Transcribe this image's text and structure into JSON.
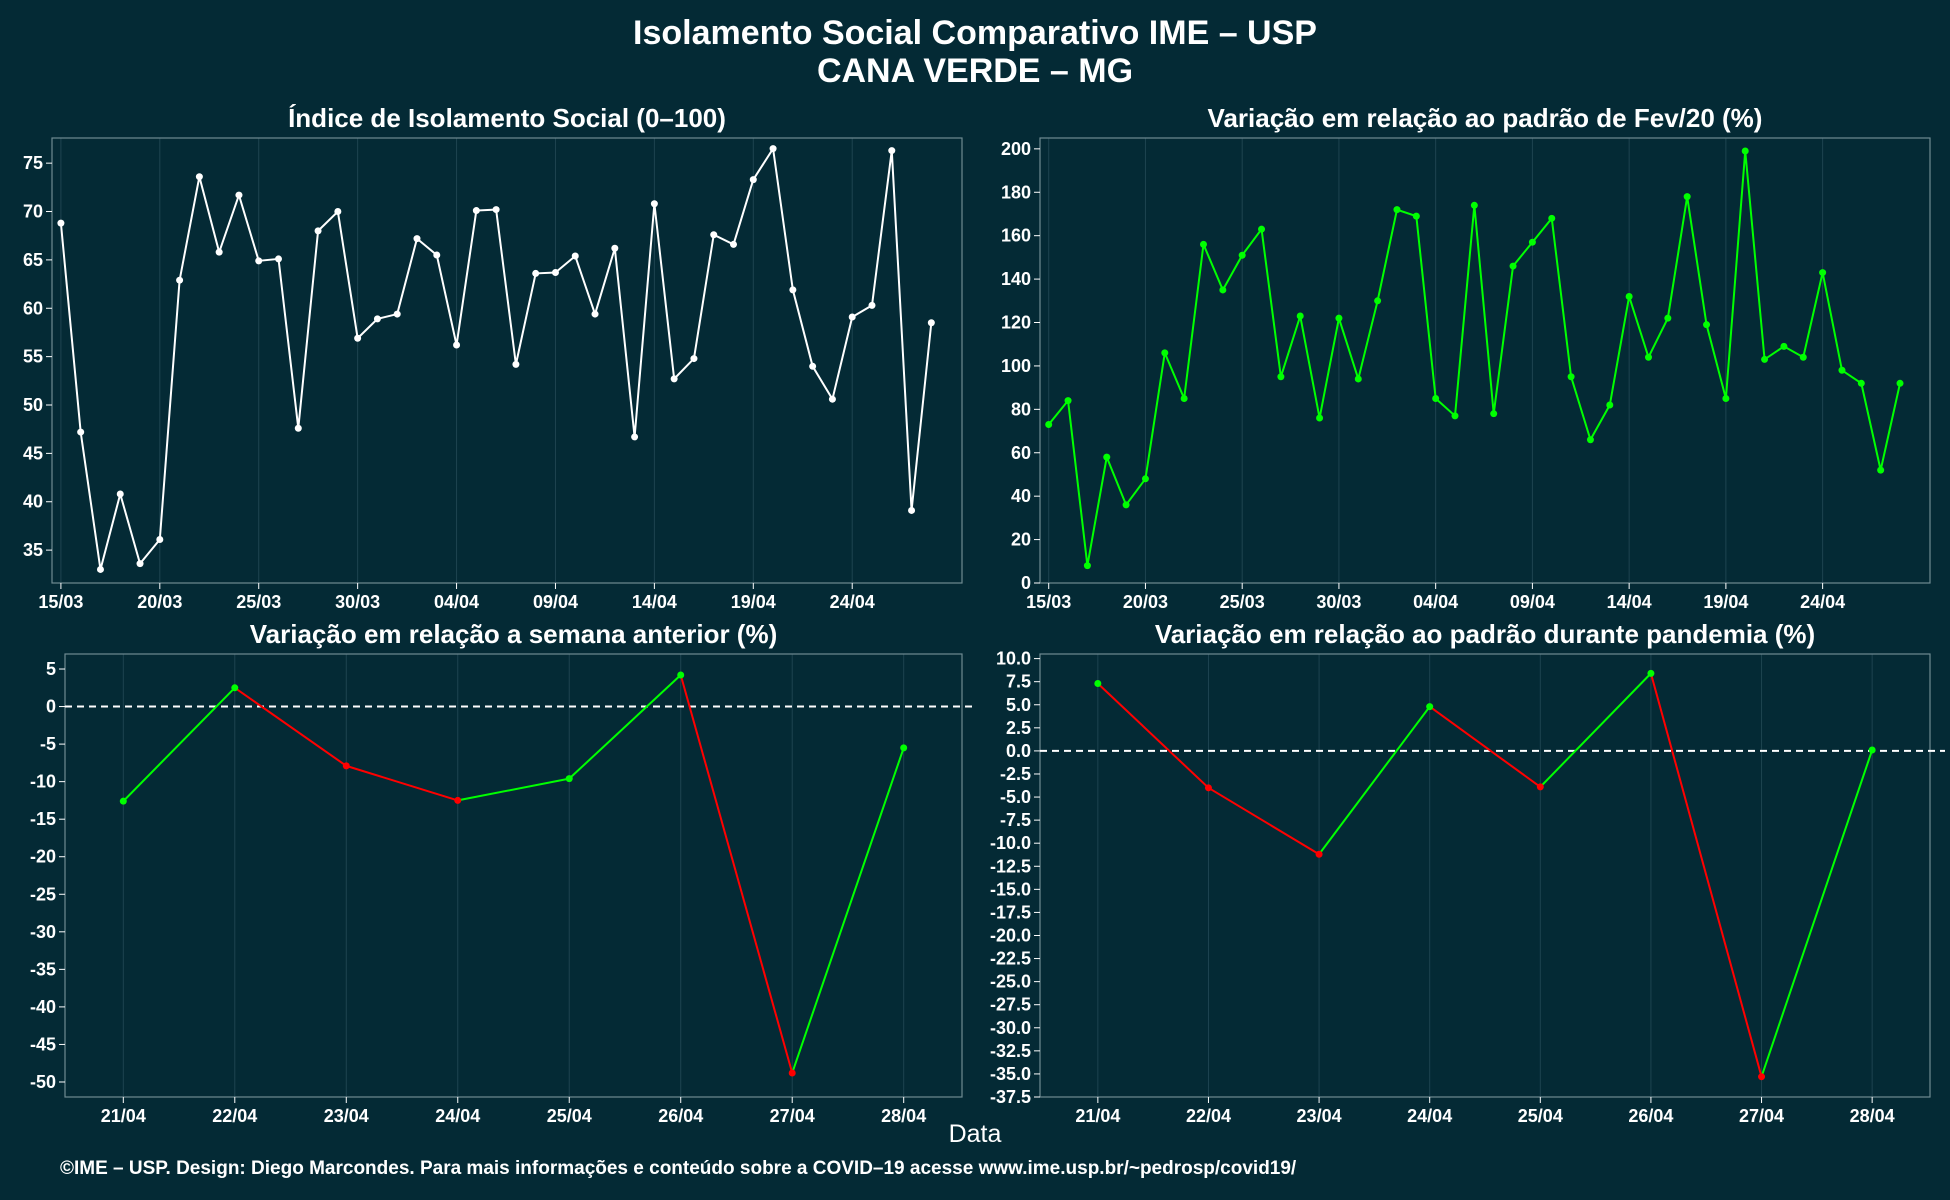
{
  "title_line1": "Isolamento Social Comparativo IME – USP",
  "title_line2": "CANA VERDE – MG",
  "x_axis_label": "Data",
  "footer": "©IME – USP. Design: Diego Marcondes. Para mais informações e conteúdo sobre a COVID–19 acesse www.ime.usp.br/~pedrosp/covid19/",
  "colors": {
    "background": "#042a35",
    "white": "#ffffff",
    "green": "#00ff00",
    "red": "#ff0000",
    "grid": "#1e4450"
  },
  "chart_data": [
    {
      "id": "isolamento",
      "type": "line",
      "title": "Índice de Isolamento Social (0–100)",
      "x_start_date": "15/03",
      "x_end_date": "29/04",
      "xticks": [
        "15/03",
        "20/03",
        "25/03",
        "30/03",
        "04/04",
        "09/04",
        "14/04",
        "19/04",
        "24/04"
      ],
      "yticks": [
        35,
        40,
        45,
        50,
        55,
        60,
        65,
        70,
        75
      ],
      "ylim": [
        31.6,
        77.6
      ],
      "color": "#ffffff",
      "values": [
        68.8,
        47.2,
        33.0,
        40.8,
        33.6,
        36.1,
        62.9,
        73.6,
        65.8,
        71.7,
        64.9,
        65.1,
        47.6,
        68.0,
        70.0,
        56.9,
        58.9,
        59.4,
        67.2,
        65.5,
        56.2,
        70.1,
        70.2,
        54.2,
        63.6,
        63.7,
        65.4,
        59.4,
        66.2,
        46.7,
        70.8,
        52.7,
        54.8,
        67.6,
        66.6,
        73.3,
        76.5,
        61.9,
        54.0,
        50.6,
        59.1,
        60.3,
        76.3,
        39.1,
        58.5
      ]
    },
    {
      "id": "fev20",
      "type": "line",
      "title": "Variação em relação ao padrão de Fev/20 (%)",
      "x_start_date": "15/03",
      "x_end_date": "29/04",
      "xticks": [
        "15/03",
        "20/03",
        "25/03",
        "30/03",
        "04/04",
        "09/04",
        "14/04",
        "19/04",
        "24/04"
      ],
      "yticks": [
        0,
        20,
        40,
        60,
        80,
        100,
        120,
        140,
        160,
        180,
        200
      ],
      "ylim": [
        0,
        205
      ],
      "color": "#00ff00",
      "values": [
        73,
        84,
        8,
        58,
        36,
        48,
        106,
        85,
        156,
        135,
        151,
        163,
        95,
        123,
        76,
        122,
        94,
        130,
        172,
        169,
        85,
        77,
        174,
        78,
        146,
        157,
        168,
        95,
        66,
        82,
        132,
        104,
        122,
        178,
        119,
        85,
        199,
        103,
        109,
        104,
        143,
        98,
        92,
        52,
        92
      ]
    },
    {
      "id": "semana",
      "type": "line",
      "title": "Variação em relação a semana anterior (%)",
      "categories": [
        "21/04",
        "22/04",
        "23/04",
        "24/04",
        "25/04",
        "26/04",
        "27/04",
        "28/04"
      ],
      "values": [
        -12.6,
        2.5,
        -7.9,
        -12.5,
        -9.6,
        4.2,
        -48.8,
        -5.5
      ],
      "yticks": [
        -50,
        -45,
        -40,
        -35,
        -30,
        -25,
        -20,
        -15,
        -10,
        -5,
        0,
        5
      ],
      "ylim": [
        -52,
        7
      ],
      "reference_line": 0,
      "up_color": "#00ff00",
      "down_color": "#ff0000"
    },
    {
      "id": "pandemia",
      "type": "line",
      "title": "Variação em relação ao padrão durante pandemia (%)",
      "categories": [
        "21/04",
        "22/04",
        "23/04",
        "24/04",
        "25/04",
        "26/04",
        "27/04",
        "28/04"
      ],
      "values": [
        7.3,
        -4.0,
        -11.2,
        4.8,
        -3.9,
        8.4,
        -35.3,
        0.1
      ],
      "yticks": [
        -37.5,
        -35,
        -32.5,
        -30,
        -27.5,
        -25,
        -22.5,
        -20,
        -17.5,
        -15,
        -12.5,
        -10,
        -7.5,
        -5,
        -2.5,
        0,
        2.5,
        5,
        7.5,
        10
      ],
      "ytick_labels": [
        "-37.5",
        "-35.0",
        "-32.5",
        "-30.0",
        "-27.5",
        "-25.0",
        "-22.5",
        "-20.0",
        "-17.5",
        "-15.0",
        "-12.5",
        "-10.0",
        "-7.5",
        "-5.0",
        "-2.5",
        "0.0",
        "2.5",
        "5.0",
        "7.5",
        "10.0"
      ],
      "ylim": [
        -37.5,
        10.5
      ],
      "reference_line": 0,
      "up_color": "#00ff00",
      "down_color": "#ff0000"
    }
  ]
}
